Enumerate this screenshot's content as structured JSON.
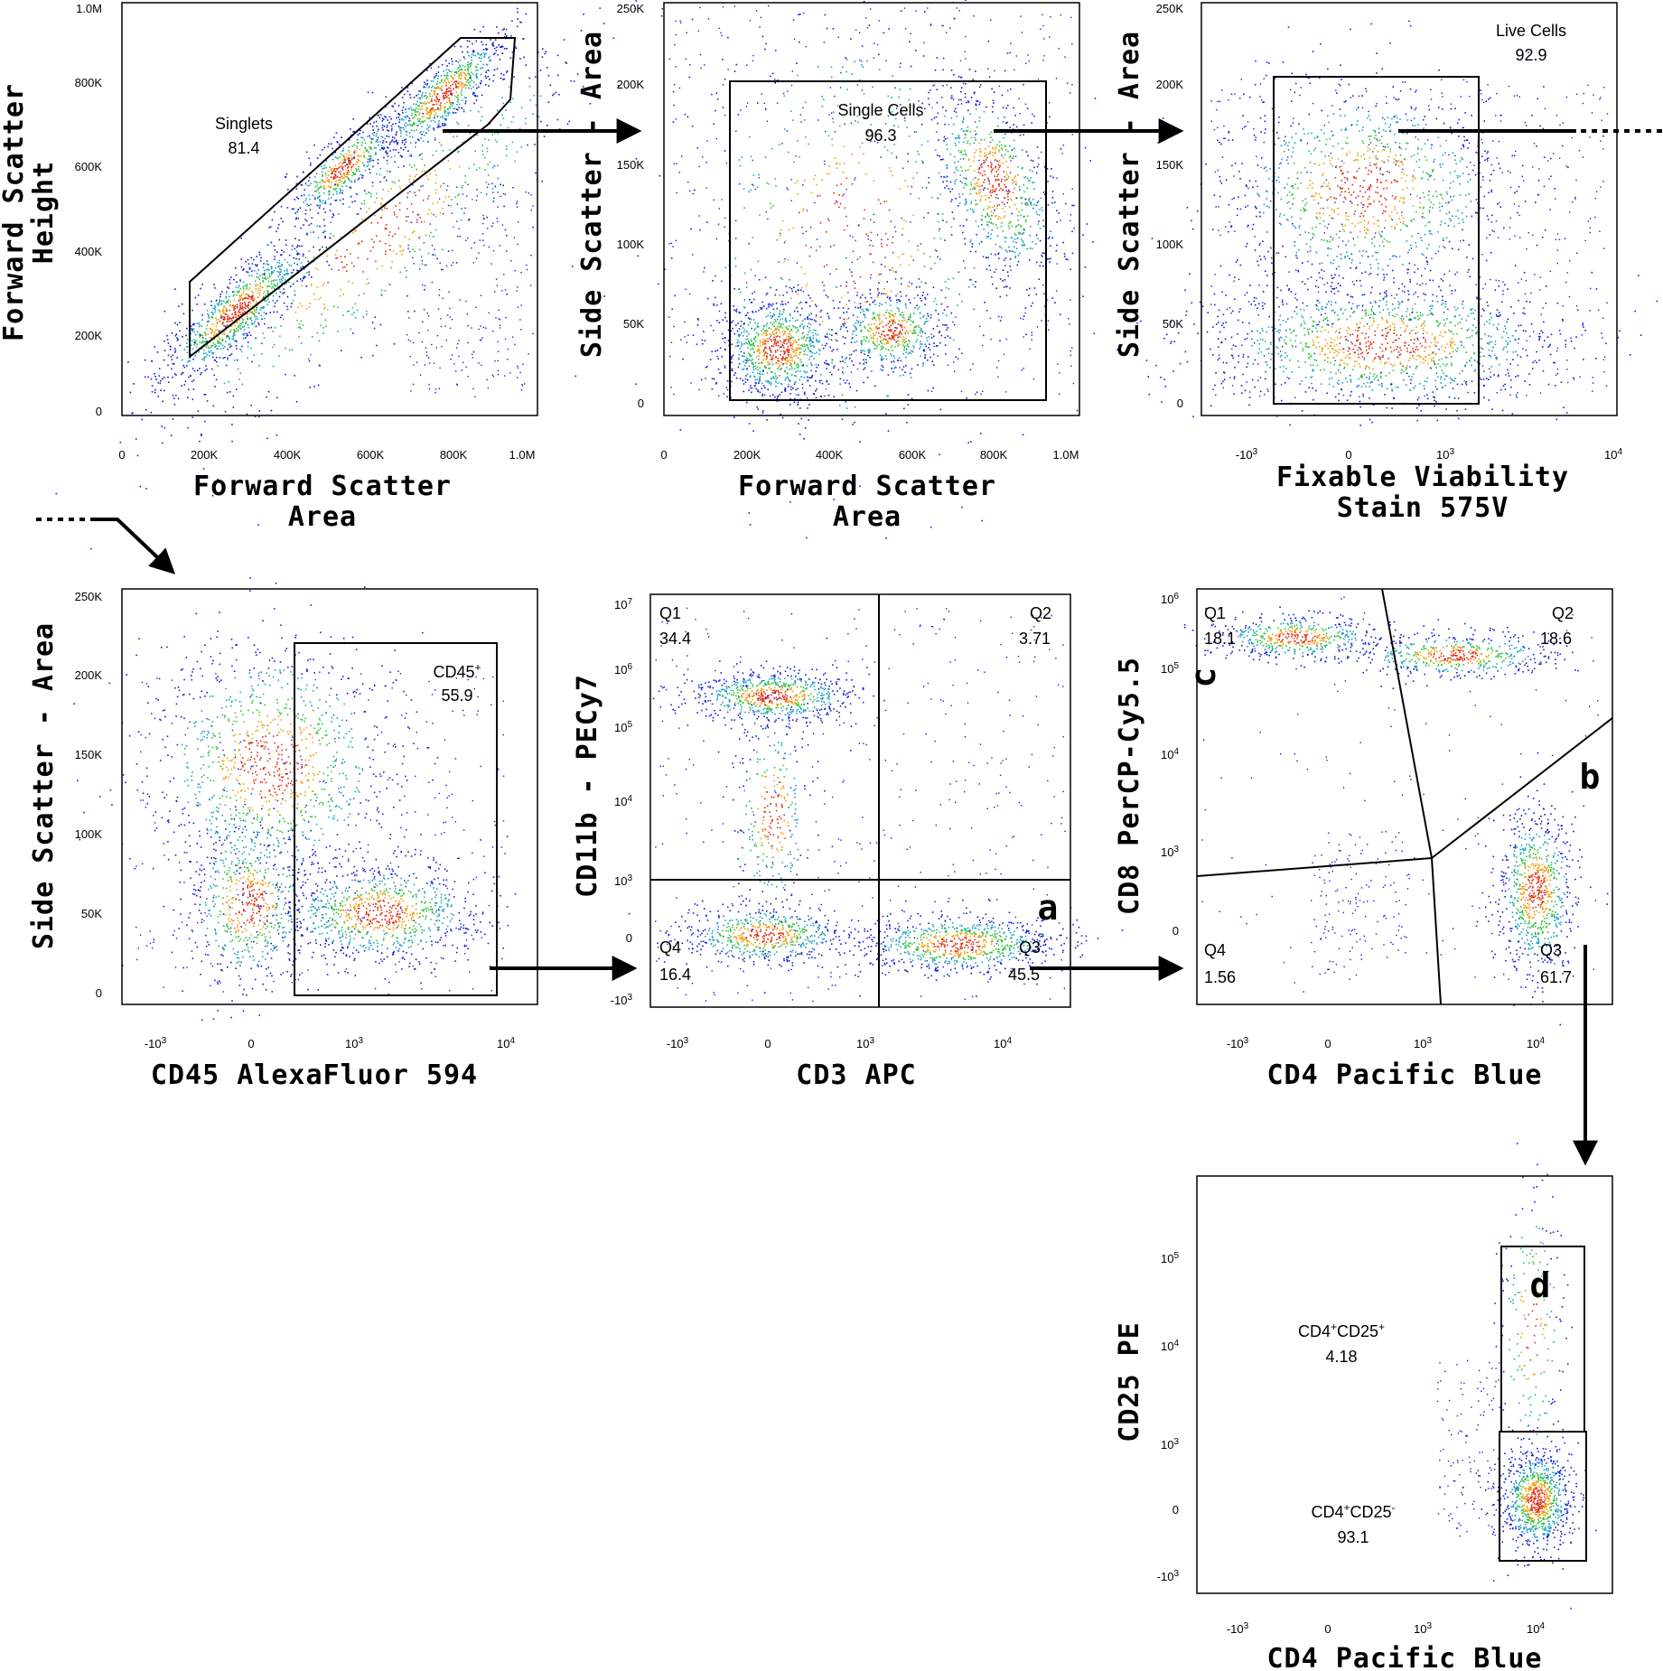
{
  "chart_data": [
    {
      "type": "scatter",
      "id": "p1",
      "xlabel": [
        "Forward Scatter",
        "Area"
      ],
      "ylabel": [
        "Forward Scatter",
        "Height"
      ],
      "xticks": [
        "0",
        "200K",
        "400K",
        "600K",
        "800K",
        "1.0M"
      ],
      "yticks": [
        "0",
        "200K",
        "400K",
        "600K",
        "800K",
        "1.0M"
      ],
      "xlim": [
        0,
        1000000
      ],
      "ylim": [
        0,
        1000000
      ],
      "gates": [
        {
          "name": "Singlets",
          "value": "81.4"
        }
      ],
      "clusters": [
        {
          "x": 270000,
          "y": 250000
        },
        {
          "x": 560000,
          "y": 600000
        },
        {
          "x": 830000,
          "y": 760000
        }
      ]
    },
    {
      "type": "scatter",
      "id": "p2",
      "xlabel": [
        "Forward Scatter",
        "Area"
      ],
      "ylabel": [
        "Side Scatter - Area"
      ],
      "xticks": [
        "0",
        "200K",
        "400K",
        "600K",
        "800K",
        "1.0M"
      ],
      "yticks": [
        "0",
        "50K",
        "100K",
        "150K",
        "200K",
        "250K"
      ],
      "xlim": [
        0,
        1000000
      ],
      "ylim": [
        0,
        250000
      ],
      "gates": [
        {
          "name": "Single Cells",
          "value": "96.3"
        }
      ],
      "clusters": [
        {
          "x": 250000,
          "y": 30000
        },
        {
          "x": 540000,
          "y": 45000
        },
        {
          "x": 820000,
          "y": 130000
        }
      ]
    },
    {
      "type": "scatter",
      "id": "p3",
      "xlabel": [
        "Fixable Viability",
        "Stain 575V"
      ],
      "ylabel": [
        "Side Scatter - Area"
      ],
      "xticks": [
        "-10^3",
        "0",
        "10^3",
        "10^4"
      ],
      "yticks": [
        "0",
        "50K",
        "100K",
        "150K",
        "200K",
        "250K"
      ],
      "xscale": "biexponential",
      "ylim": [
        0,
        250000
      ],
      "gates": [
        {
          "name": "Live Cells",
          "value": "92.9"
        }
      ]
    },
    {
      "type": "scatter",
      "id": "p4",
      "xlabel": [
        "CD45 AlexaFluor 594"
      ],
      "ylabel": [
        "Side Scatter - Area"
      ],
      "xticks": [
        "-10^3",
        "0",
        "10^3",
        "10^4"
      ],
      "yticks": [
        "0",
        "50K",
        "100K",
        "150K",
        "200K",
        "250K"
      ],
      "xscale": "biexponential",
      "ylim": [
        0,
        250000
      ],
      "gates": [
        {
          "name": "CD45",
          "sup": "+",
          "value": "55.9"
        }
      ]
    },
    {
      "type": "scatter",
      "id": "p5",
      "xlabel": [
        "CD3 APC"
      ],
      "ylabel": [
        "CD11b - PECy7"
      ],
      "xticks": [
        "-10^3",
        "0",
        "10^3",
        "10^4"
      ],
      "yticks": [
        "-10^3",
        "0",
        "10^3",
        "10^4",
        "10^5",
        "10^6",
        "10^7"
      ],
      "xscale": "biexponential",
      "yscale": "biexponential",
      "quadrants": [
        {
          "name": "Q1",
          "value": "34.4"
        },
        {
          "name": "Q2",
          "value": "3.71"
        },
        {
          "name": "Q3",
          "value": "45.5"
        },
        {
          "name": "Q4",
          "value": "16.4"
        }
      ],
      "panel_letter": "a"
    },
    {
      "type": "scatter",
      "id": "p6",
      "xlabel": [
        "CD4 Pacific Blue"
      ],
      "ylabel": [
        "CD8 PerCP-Cy5.5"
      ],
      "xticks": [
        "-10^3",
        "0",
        "10^3",
        "10^4"
      ],
      "yticks": [
        "0",
        "10^3",
        "10^4",
        "10^5",
        "10^6"
      ],
      "xscale": "biexponential",
      "yscale": "biexponential",
      "quadrants": [
        {
          "name": "Q1",
          "value": "18.1"
        },
        {
          "name": "Q2",
          "value": "18.6"
        },
        {
          "name": "Q3",
          "value": "61.7"
        },
        {
          "name": "Q4",
          "value": "1.56"
        }
      ],
      "panel_letters": [
        "c",
        "b"
      ]
    },
    {
      "type": "scatter",
      "id": "p7",
      "xlabel": [
        "CD4 Pacific Blue"
      ],
      "ylabel": [
        "CD25 PE"
      ],
      "xticks": [
        "-10^3",
        "0",
        "10^3",
        "10^4"
      ],
      "yticks": [
        "-10^3",
        "0",
        "10^3",
        "10^4",
        "10^5"
      ],
      "xscale": "biexponential",
      "yscale": "biexponential",
      "gates": [
        {
          "name": "CD4",
          "sup1": "+",
          "name2": "CD25",
          "sup2": "+",
          "value": "4.18"
        },
        {
          "name": "CD4",
          "sup1": "+",
          "name2": "CD25",
          "sup2": "-",
          "value": "93.1"
        }
      ],
      "panel_letter": "d"
    }
  ]
}
